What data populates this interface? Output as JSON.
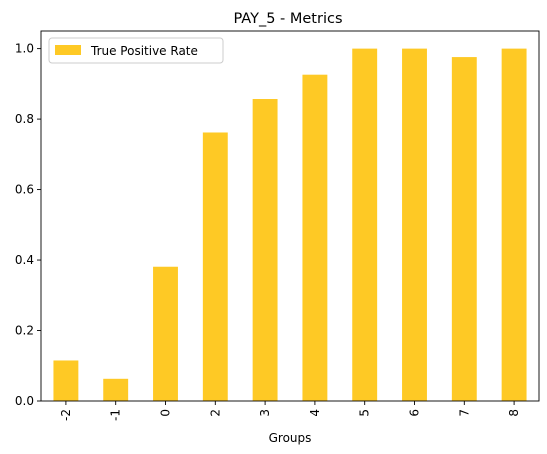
{
  "chart_data": {
    "type": "bar",
    "title": "PAY_5 - Metrics",
    "xlabel": "Groups",
    "ylabel": "",
    "categories": [
      "-2",
      "-1",
      "0",
      "2",
      "3",
      "4",
      "5",
      "6",
      "7",
      "8"
    ],
    "series": [
      {
        "name": "True Positive Rate",
        "values": [
          0.115,
          0.063,
          0.381,
          0.762,
          0.857,
          0.926,
          1.0,
          1.0,
          0.976,
          1.0
        ],
        "color": "#fec925"
      }
    ],
    "ylim": [
      0,
      1.05
    ],
    "yticks": [
      "0.0",
      "0.2",
      "0.4",
      "0.6",
      "0.8",
      "1.0"
    ],
    "grid": false,
    "legend_position": "top-left"
  }
}
